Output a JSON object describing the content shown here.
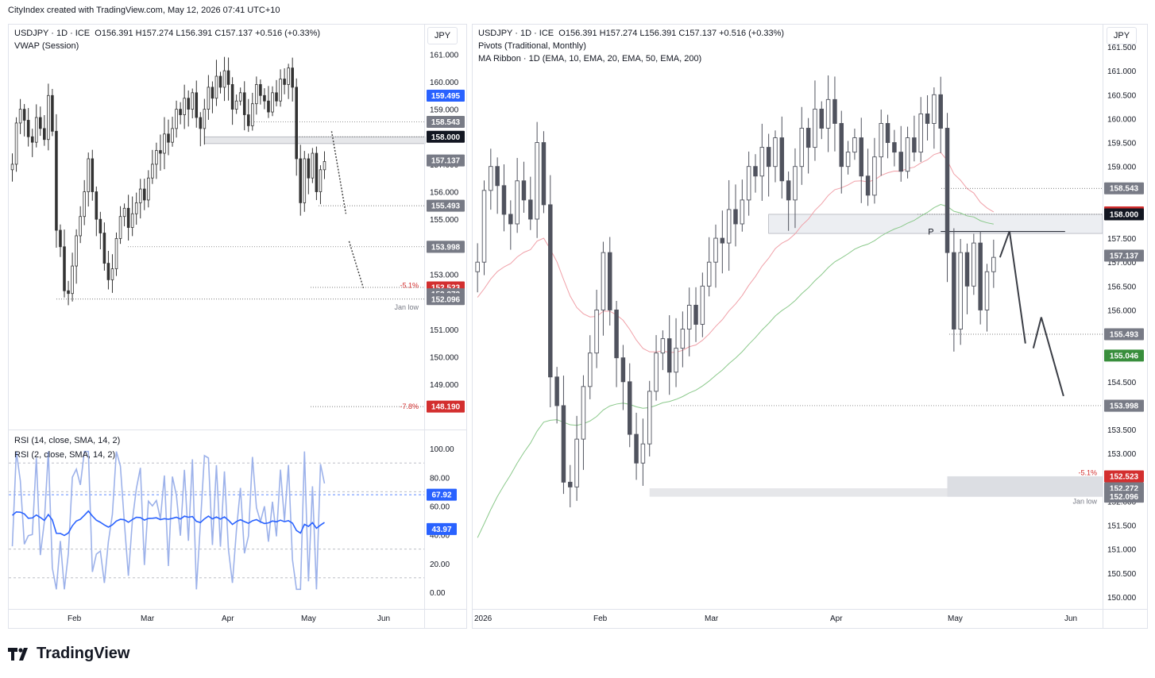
{
  "header": {
    "credit": "CityIndex created with TradingView.com, May 12, 2026 07:41 UTC+10"
  },
  "footer": {
    "brand": "TradingView"
  },
  "colors": {
    "blue": "#2962ff",
    "rsi_light": "#9db2ea",
    "red_tag": "#d32f2f",
    "green_tag": "#388e3c",
    "candle_dark": "#50535e",
    "ema50": "#f0a0a8",
    "ema200": "#8bc98b"
  },
  "left": {
    "legend_symbol": "USDJPY · 1D · ICE",
    "legend_ohlc": "O156.391  H157.274  L156.391  C157.137  +0.516 (+0.33%)",
    "legend_indicator": "VWAP (Session)",
    "currency": "JPY",
    "rsi_legend_1": "RSI (14, close, SMA, 14, 2)",
    "rsi_legend_2": "RSI (2, close, SMA, 14, 2)",
    "x_ticks": [
      "Feb",
      "Mar",
      "Apr",
      "May",
      "Jun"
    ],
    "annotations": {
      "pct1": "-5.1%",
      "pct2": "-7.8%",
      "jan_low": "Jan low"
    }
  },
  "right": {
    "legend_symbol": "USDJPY · 1D · ICE",
    "legend_ohlc": "O156.391  H157.274  L156.391  C157.137  +0.516 (+0.33%)",
    "legend_pivots": "Pivots (Traditional, Monthly)",
    "legend_ribbon": "MA Ribbon · 1D (EMA, 10, EMA, 20, EMA, 50, EMA, 200)",
    "currency": "JPY",
    "x_ticks": [
      "2026",
      "Feb",
      "Mar",
      "Apr",
      "May",
      "Jun"
    ],
    "annotations": {
      "pct1": "-5.1%",
      "jan_low": "Jan low",
      "pivot": "P"
    }
  },
  "chart_data": [
    {
      "type": "candlestick",
      "title": "USDJPY · 1D · ICE",
      "panel": "left-price",
      "ylim": [
        147.5,
        161.5
      ],
      "y_ticks": [
        149.0,
        150.0,
        151.0,
        152.0,
        153.0,
        154.0,
        155.0,
        156.0,
        157.0,
        158.0,
        159.0,
        160.0,
        161.0
      ],
      "price_tags": [
        {
          "label": "159.495",
          "value": 159.495,
          "color": "#2962ff"
        },
        {
          "label": "158.543",
          "value": 158.543,
          "color": "#787b86"
        },
        {
          "label": "158.000",
          "value": 158.0,
          "color": "#131722"
        },
        {
          "label": "157.137",
          "value": 157.137,
          "color": "#787b86"
        },
        {
          "label": "155.493",
          "value": 155.493,
          "color": "#787b86"
        },
        {
          "label": "154.000",
          "value": 154.0,
          "color": "#787b86"
        },
        {
          "label": "153.998",
          "value": 153.998,
          "color": "#787b86"
        },
        {
          "label": "152.523",
          "value": 152.523,
          "color": "#d32f2f"
        },
        {
          "label": "152.272",
          "value": 152.272,
          "color": "#787b86"
        },
        {
          "label": "152.096",
          "value": 152.096,
          "color": "#787b86"
        },
        {
          "label": "148.190",
          "value": 148.19,
          "color": "#d32f2f"
        }
      ]
    },
    {
      "type": "line",
      "title": "RSI",
      "panel": "left-rsi",
      "ylim": [
        -10,
        110
      ],
      "y_ticks": [
        0.0,
        20.0,
        40.0,
        60.0,
        80.0,
        100.0
      ],
      "price_tags": [
        {
          "label": "67.92",
          "value": 67.92,
          "color": "#2962ff"
        },
        {
          "label": "43.97",
          "value": 43.97,
          "color": "#2962ff"
        }
      ]
    },
    {
      "type": "candlestick",
      "title": "USDJPY · 1D · ICE",
      "panel": "right-price",
      "ylim": [
        149.8,
        161.8
      ],
      "y_ticks": [
        150.0,
        150.5,
        151.0,
        151.5,
        152.0,
        152.5,
        153.0,
        153.5,
        154.0,
        154.5,
        155.0,
        155.5,
        156.0,
        156.5,
        157.0,
        157.5,
        158.0,
        158.5,
        159.0,
        159.5,
        160.0,
        160.5,
        161.0,
        161.5
      ],
      "price_tags": [
        {
          "label": "158.543",
          "value": 158.543,
          "color": "#787b86"
        },
        {
          "label": "158.041",
          "value": 158.041,
          "color": "#d32f2f"
        },
        {
          "label": "158.000",
          "value": 158.0,
          "color": "#131722"
        },
        {
          "label": "157.137",
          "value": 157.137,
          "color": "#787b86"
        },
        {
          "label": "155.493",
          "value": 155.493,
          "color": "#787b86"
        },
        {
          "label": "155.046",
          "value": 155.046,
          "color": "#388e3c"
        },
        {
          "label": "154.000",
          "value": 154.0,
          "color": "#787b86"
        },
        {
          "label": "153.998",
          "value": 153.998,
          "color": "#787b86"
        },
        {
          "label": "152.523",
          "value": 152.523,
          "color": "#d32f2f"
        },
        {
          "label": "152.272",
          "value": 152.272,
          "color": "#787b86"
        },
        {
          "label": "152.096",
          "value": 152.096,
          "color": "#787b86"
        }
      ]
    }
  ]
}
